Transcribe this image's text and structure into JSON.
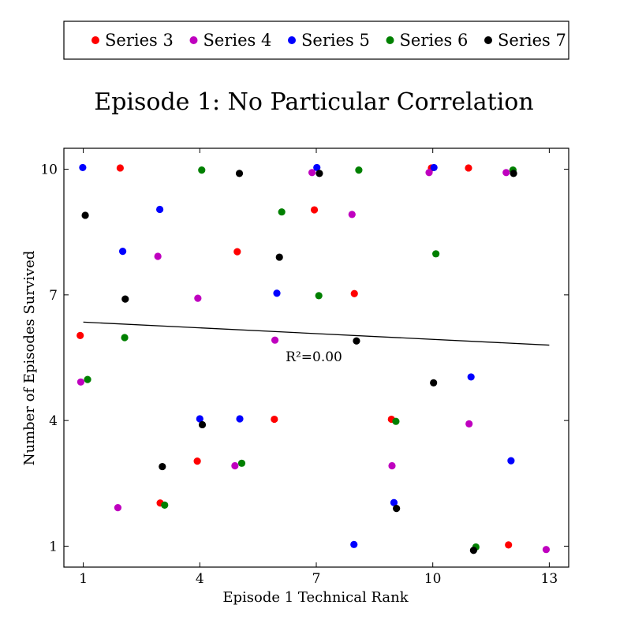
{
  "chart_data": {
    "type": "scatter",
    "title": "Episode 1: No Particular Correlation",
    "xlabel": "Episode 1 Technical Rank",
    "ylabel": "Number of Episodes Survived",
    "xlim": [
      0.5,
      13.5
    ],
    "ylim": [
      0.5,
      10.5
    ],
    "xticks": [
      1,
      4,
      7,
      10,
      13
    ],
    "yticks": [
      1,
      4,
      7,
      10
    ],
    "grid": false,
    "legend": "top, outside, horizontal",
    "annotation": "R²=0.00",
    "trendline": {
      "x": [
        1,
        13
      ],
      "y": [
        6.35,
        5.8
      ]
    },
    "series": [
      {
        "name": "Series 3",
        "color": "#ff0000",
        "x": [
          1,
          2,
          3,
          4,
          5,
          6,
          7,
          8,
          9,
          10,
          11,
          12
        ],
        "y": [
          6,
          10,
          2,
          3,
          8,
          4,
          9,
          7,
          4,
          10,
          10,
          1
        ]
      },
      {
        "name": "Series 4",
        "color": "#bf00bf",
        "x": [
          1,
          2,
          3,
          4,
          5,
          6,
          7,
          8,
          9,
          10,
          11,
          12,
          13
        ],
        "y": [
          5,
          2,
          8,
          7,
          3,
          6,
          10,
          9,
          3,
          10,
          4,
          10,
          1
        ]
      },
      {
        "name": "Series 5",
        "color": "#0000ff",
        "x": [
          1,
          2,
          3,
          4,
          5,
          6,
          7,
          8,
          9,
          10,
          11,
          12
        ],
        "y": [
          10,
          8,
          9,
          4,
          4,
          7,
          10,
          1,
          2,
          10,
          5,
          3
        ]
      },
      {
        "name": "Series 6",
        "color": "#008000",
        "x": [
          1,
          2,
          3,
          4,
          5,
          6,
          7,
          8,
          9,
          10,
          11,
          12
        ],
        "y": [
          5,
          6,
          2,
          10,
          3,
          9,
          7,
          10,
          4,
          8,
          1,
          10
        ]
      },
      {
        "name": "Series 7",
        "color": "#000000",
        "x": [
          1,
          2,
          3,
          4,
          5,
          6,
          7,
          8,
          9,
          10,
          11,
          12
        ],
        "y": [
          9,
          7,
          3,
          4,
          10,
          8,
          10,
          6,
          2,
          5,
          1,
          10
        ]
      }
    ]
  }
}
